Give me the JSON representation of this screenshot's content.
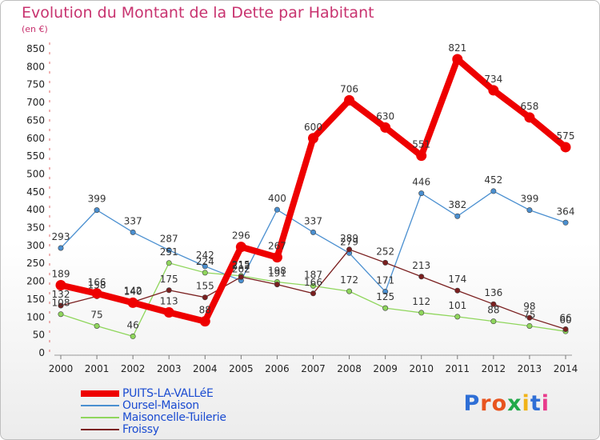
{
  "title": "Evolution du Montant de la Dette par Habitant",
  "unit": "(en €)",
  "brand": {
    "text": "Proxiti",
    "letter_colors": [
      "#2f6fd6",
      "#e8541f",
      "#e8541f",
      "#21a94a",
      "#f1b319",
      "#2f6fd6",
      "#e83b8c"
    ]
  },
  "chart_data": {
    "type": "line",
    "title": "Evolution du Montant de la Dette par Habitant",
    "ylabel": "(en €)",
    "xlabel": "",
    "x": [
      "2000",
      "2001",
      "2002",
      "2003",
      "2004",
      "2005",
      "2006",
      "2007",
      "2008",
      "2009",
      "2010",
      "2011",
      "2012",
      "2013",
      "2014"
    ],
    "yticks": [
      0,
      50,
      100,
      150,
      200,
      250,
      300,
      350,
      400,
      450,
      500,
      550,
      600,
      650,
      700,
      750,
      800,
      850
    ],
    "ylim": [
      0,
      850
    ],
    "grid": false,
    "legend_position": "bottom-left",
    "series": [
      {
        "name": "PUITS-LA-VALLéE",
        "color": "#ee0000",
        "emphasis": true,
        "values": [
          189,
          166,
          140,
          113,
          88,
          296,
          267,
          600,
          706,
          630,
          551,
          821,
          734,
          658,
          575
        ],
        "labels": [
          "189",
          "166",
          "140",
          "113",
          "88",
          "296",
          "267",
          "600",
          "706",
          "630",
          "551",
          "821",
          "734",
          "658",
          "575"
        ]
      },
      {
        "name": "Oursel-Maison",
        "color": "#4a8fd0",
        "emphasis": false,
        "values": [
          293,
          399,
          337,
          287,
          242,
          202,
          400,
          337,
          279,
          171,
          446,
          382,
          452,
          399,
          364
        ],
        "labels": [
          "293",
          "399",
          "337",
          "287",
          "242",
          "202",
          "400",
          "337",
          "279",
          "171",
          "446",
          "382",
          "452",
          "399",
          "364"
        ]
      },
      {
        "name": "Maisoncelle-Tuilerie",
        "color": "#8fd65c",
        "emphasis": false,
        "values": [
          108,
          75,
          46,
          251,
          224,
          215,
          198,
          187,
          172,
          125,
          112,
          101,
          88,
          75,
          60
        ],
        "labels": [
          "108",
          "75",
          "46",
          "251",
          "224",
          "215",
          "198",
          "187",
          "172",
          "125",
          "112",
          "101",
          "88",
          "75",
          "60"
        ]
      },
      {
        "name": "Froissy",
        "color": "#7a1f1f",
        "emphasis": false,
        "values": [
          132,
          158,
          142,
          175,
          155,
          212,
          191,
          166,
          289,
          252,
          213,
          174,
          136,
          98,
          66
        ],
        "labels": [
          "132",
          "158",
          "142",
          "175",
          "155",
          "212",
          "191",
          "166",
          "289",
          "252",
          "213",
          "174",
          "136",
          "98",
          "66"
        ]
      }
    ]
  }
}
